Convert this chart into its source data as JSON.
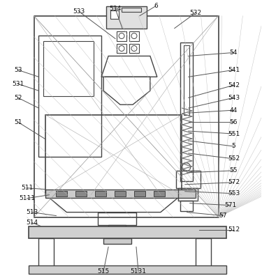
{
  "bg_color": "#ffffff",
  "lc": "#777777",
  "dc": "#444444",
  "fig_width": 3.75,
  "fig_height": 3.99,
  "dpi": 100
}
